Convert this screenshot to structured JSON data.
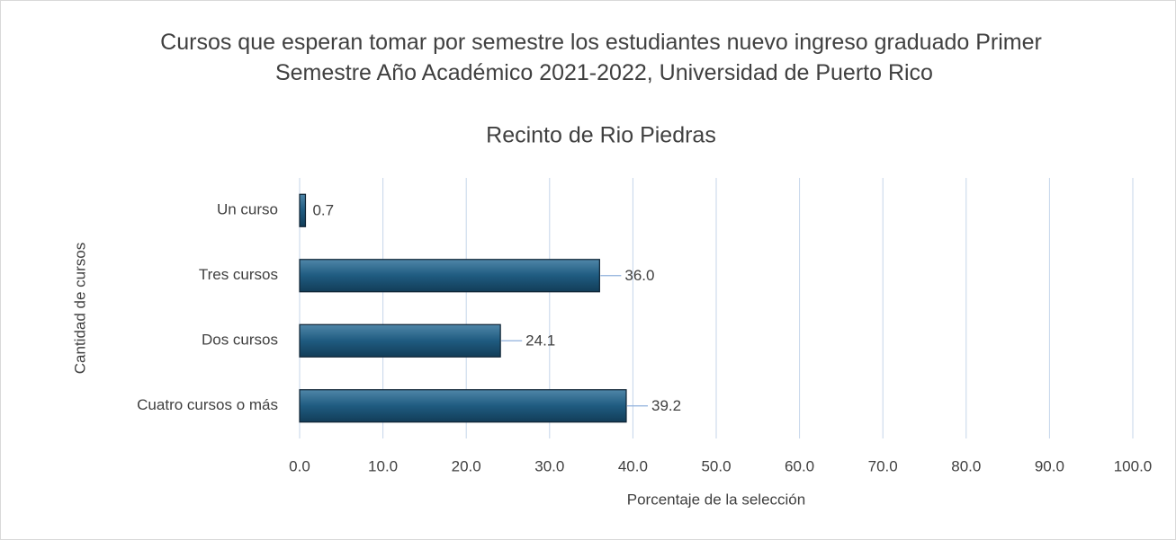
{
  "chart_data": {
    "type": "hbar",
    "title": "Cursos que esperan tomar por semestre los estudiantes nuevo ingreso graduado Primer Semestre Año Académico 2021-2022, Universidad de Puerto Rico",
    "subtitle": "Recinto de Rio Piedras",
    "x_label": "Porcentaje de la selección",
    "y_label": "Cantidad de cursos",
    "categories": [
      "Un curso",
      "Tres cursos",
      "Dos cursos",
      "Cuatro cursos o más"
    ],
    "values": [
      0.7,
      36.0,
      24.1,
      39.2
    ],
    "value_labels": [
      "0.7",
      "36.0",
      "24.1",
      "39.2"
    ],
    "color": "#1f5b80",
    "xlim": [
      0,
      100
    ],
    "xticks": [
      {
        "value": 0,
        "label": "0.0"
      },
      {
        "value": 10,
        "label": "10.0"
      },
      {
        "value": 20,
        "label": "20.0"
      },
      {
        "value": 30,
        "label": "30.0"
      },
      {
        "value": 40,
        "label": "40.0"
      },
      {
        "value": 50,
        "label": "50.0"
      },
      {
        "value": 60,
        "label": "60.0"
      },
      {
        "value": 70,
        "label": "70.0"
      },
      {
        "value": 80,
        "label": "80.0"
      },
      {
        "value": 90,
        "label": "90.0"
      },
      {
        "value": 100,
        "label": "100.0"
      }
    ],
    "grid": true
  }
}
